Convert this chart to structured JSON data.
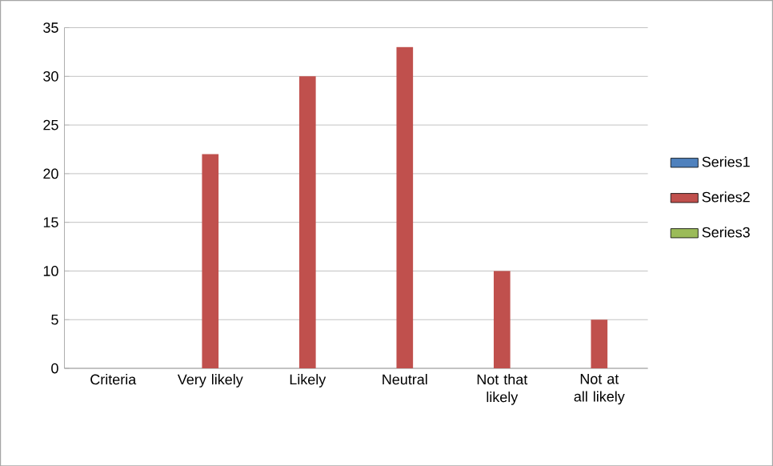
{
  "chart_data": {
    "type": "bar",
    "categories": [
      "Criteria",
      "Very likely",
      "Likely",
      "Neutral",
      "Not that likely",
      "Not at all likely"
    ],
    "series": [
      {
        "name": "Series1",
        "color": "#4f81bd",
        "values": [
          null,
          null,
          null,
          null,
          null,
          null
        ]
      },
      {
        "name": "Series2",
        "color": "#c0504d",
        "values": [
          null,
          22,
          30,
          33,
          10,
          5
        ]
      },
      {
        "name": "Series3",
        "color": "#9bbb59",
        "values": [
          null,
          null,
          null,
          null,
          null,
          null
        ]
      }
    ],
    "ylim": [
      0,
      35
    ],
    "yticks": [
      0,
      5,
      10,
      15,
      20,
      25,
      30,
      35
    ],
    "grid": "y",
    "legend": "right"
  }
}
